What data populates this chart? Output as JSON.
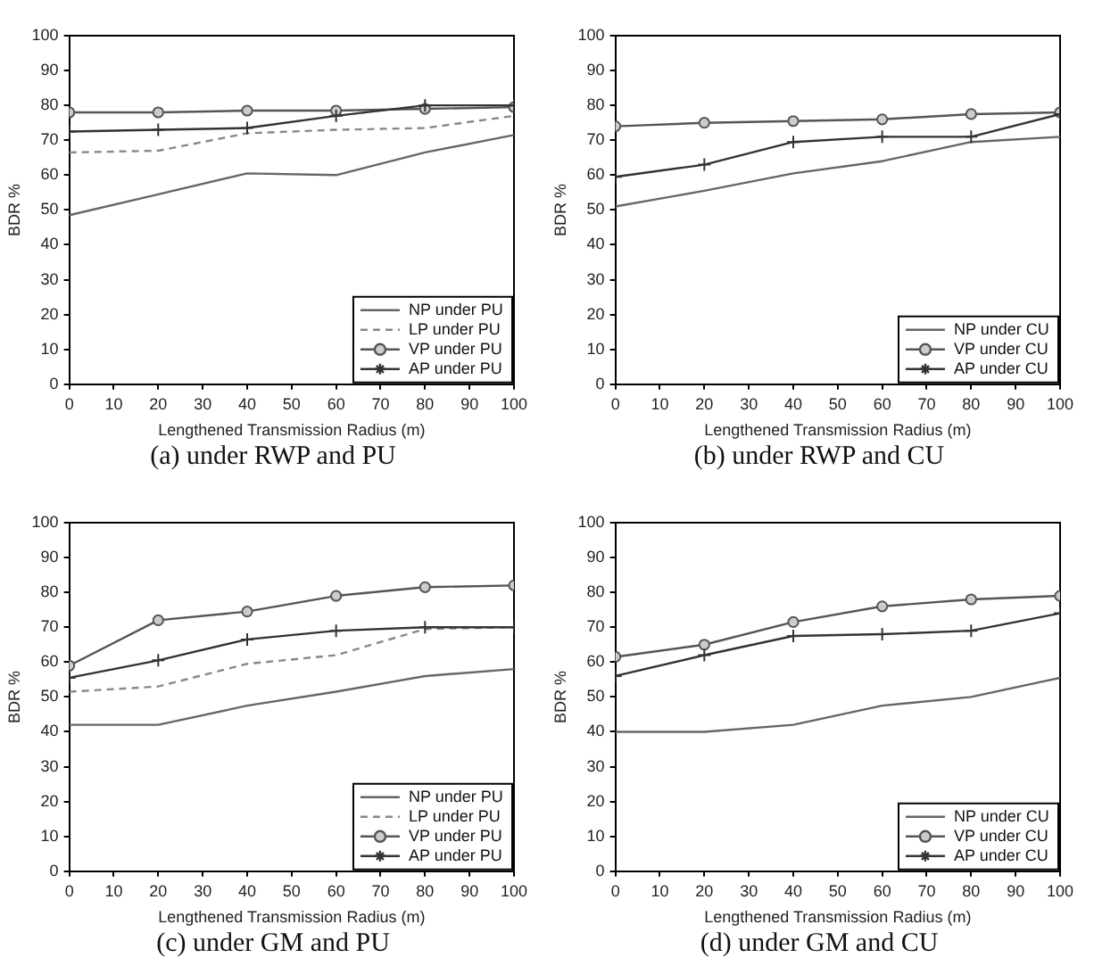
{
  "chart_data": [
    {
      "type": "line",
      "xlabel": "Lengthened Transmission Radius (m)",
      "ylabel": "BDR %",
      "x": [
        0,
        20,
        40,
        60,
        80,
        100
      ],
      "xlim": [
        0,
        100
      ],
      "ylim": [
        0,
        100
      ],
      "xticks": [
        0,
        10,
        20,
        30,
        40,
        50,
        60,
        70,
        80,
        90,
        100
      ],
      "yticks": [
        0,
        10,
        20,
        30,
        40,
        50,
        60,
        70,
        80,
        90,
        100
      ],
      "grid": false,
      "legend": "bottom right",
      "annotations": [
        "(a) under RWP and PU"
      ],
      "series": [
        {
          "name": "NP under PU",
          "color": "#666666",
          "marker": "none",
          "line_style": "solid",
          "values": [
            48.5,
            54.5,
            60.5,
            60,
            66.5,
            71.5
          ]
        },
        {
          "name": "LP under PU",
          "color": "#888888",
          "marker": "none",
          "line_style": "dashed",
          "values": [
            66.5,
            67,
            72,
            73,
            73.5,
            77
          ]
        },
        {
          "name": "VP under PU",
          "color": "#555555",
          "marker": "circle",
          "line_style": "solid",
          "values": [
            78,
            78,
            78.5,
            78.5,
            79,
            79.5
          ]
        },
        {
          "name": "AP under PU",
          "color": "#333333",
          "marker": "cross",
          "line_style": "solid",
          "values": [
            72.5,
            73,
            73.5,
            77,
            80,
            80
          ]
        }
      ]
    },
    {
      "type": "line",
      "xlabel": "Lengthened Transmission Radius (m)",
      "ylabel": "BDR %",
      "x": [
        0,
        20,
        40,
        60,
        80,
        100
      ],
      "xlim": [
        0,
        100
      ],
      "ylim": [
        0,
        100
      ],
      "xticks": [
        0,
        10,
        20,
        30,
        40,
        50,
        60,
        70,
        80,
        90,
        100
      ],
      "yticks": [
        0,
        10,
        20,
        30,
        40,
        50,
        60,
        70,
        80,
        90,
        100
      ],
      "grid": false,
      "legend": "bottom right",
      "annotations": [
        "(b) under RWP and CU"
      ],
      "series": [
        {
          "name": "NP under CU",
          "color": "#666666",
          "marker": "none",
          "line_style": "solid",
          "values": [
            51,
            55.5,
            60.5,
            64,
            69.5,
            71
          ]
        },
        {
          "name": "VP under CU",
          "color": "#555555",
          "marker": "circle",
          "line_style": "solid",
          "values": [
            74,
            75,
            75.5,
            76,
            77.5,
            78
          ]
        },
        {
          "name": "AP under CU",
          "color": "#333333",
          "marker": "cross",
          "line_style": "solid",
          "values": [
            59.5,
            63,
            69.5,
            71,
            71,
            77.5
          ]
        }
      ]
    },
    {
      "type": "line",
      "xlabel": "Lengthened Transmission Radius (m)",
      "ylabel": "BDR %",
      "x": [
        0,
        20,
        40,
        60,
        80,
        100
      ],
      "xlim": [
        0,
        100
      ],
      "ylim": [
        0,
        100
      ],
      "xticks": [
        0,
        10,
        20,
        30,
        40,
        50,
        60,
        70,
        80,
        90,
        100
      ],
      "yticks": [
        0,
        10,
        20,
        30,
        40,
        50,
        60,
        70,
        80,
        90,
        100
      ],
      "grid": false,
      "legend": "bottom right",
      "annotations": [
        "(c) under GM and PU"
      ],
      "series": [
        {
          "name": "NP under PU",
          "color": "#666666",
          "marker": "none",
          "line_style": "solid",
          "values": [
            42,
            42,
            47.5,
            51.5,
            56,
            58
          ]
        },
        {
          "name": "LP under PU",
          "color": "#888888",
          "marker": "none",
          "line_style": "dashed",
          "values": [
            51.5,
            53,
            59.5,
            62,
            69.5,
            70
          ]
        },
        {
          "name": "VP under PU",
          "color": "#555555",
          "marker": "circle",
          "line_style": "solid",
          "values": [
            59,
            72,
            74.5,
            79,
            81.5,
            82
          ]
        },
        {
          "name": "AP under PU",
          "color": "#333333",
          "marker": "cross",
          "line_style": "solid",
          "values": [
            55.5,
            60.5,
            66.5,
            69,
            70,
            70
          ]
        }
      ]
    },
    {
      "type": "line",
      "xlabel": "Lengthened Transmission Radius (m)",
      "ylabel": "BDR %",
      "x": [
        0,
        20,
        40,
        60,
        80,
        100
      ],
      "xlim": [
        0,
        100
      ],
      "ylim": [
        0,
        100
      ],
      "xticks": [
        0,
        10,
        20,
        30,
        40,
        50,
        60,
        70,
        80,
        90,
        100
      ],
      "yticks": [
        0,
        10,
        20,
        30,
        40,
        50,
        60,
        70,
        80,
        90,
        100
      ],
      "grid": false,
      "legend": "bottom right",
      "annotations": [
        "(d) under GM and CU"
      ],
      "series": [
        {
          "name": "NP under CU",
          "color": "#666666",
          "marker": "none",
          "line_style": "solid",
          "values": [
            40,
            40,
            42,
            47.5,
            50,
            55.5
          ]
        },
        {
          "name": "VP under CU",
          "color": "#555555",
          "marker": "circle",
          "line_style": "solid",
          "values": [
            61.5,
            65,
            71.5,
            76,
            78,
            79
          ]
        },
        {
          "name": "AP under CU",
          "color": "#333333",
          "marker": "cross",
          "line_style": "solid",
          "values": [
            56,
            62,
            67.5,
            68,
            69,
            74
          ]
        }
      ]
    }
  ]
}
